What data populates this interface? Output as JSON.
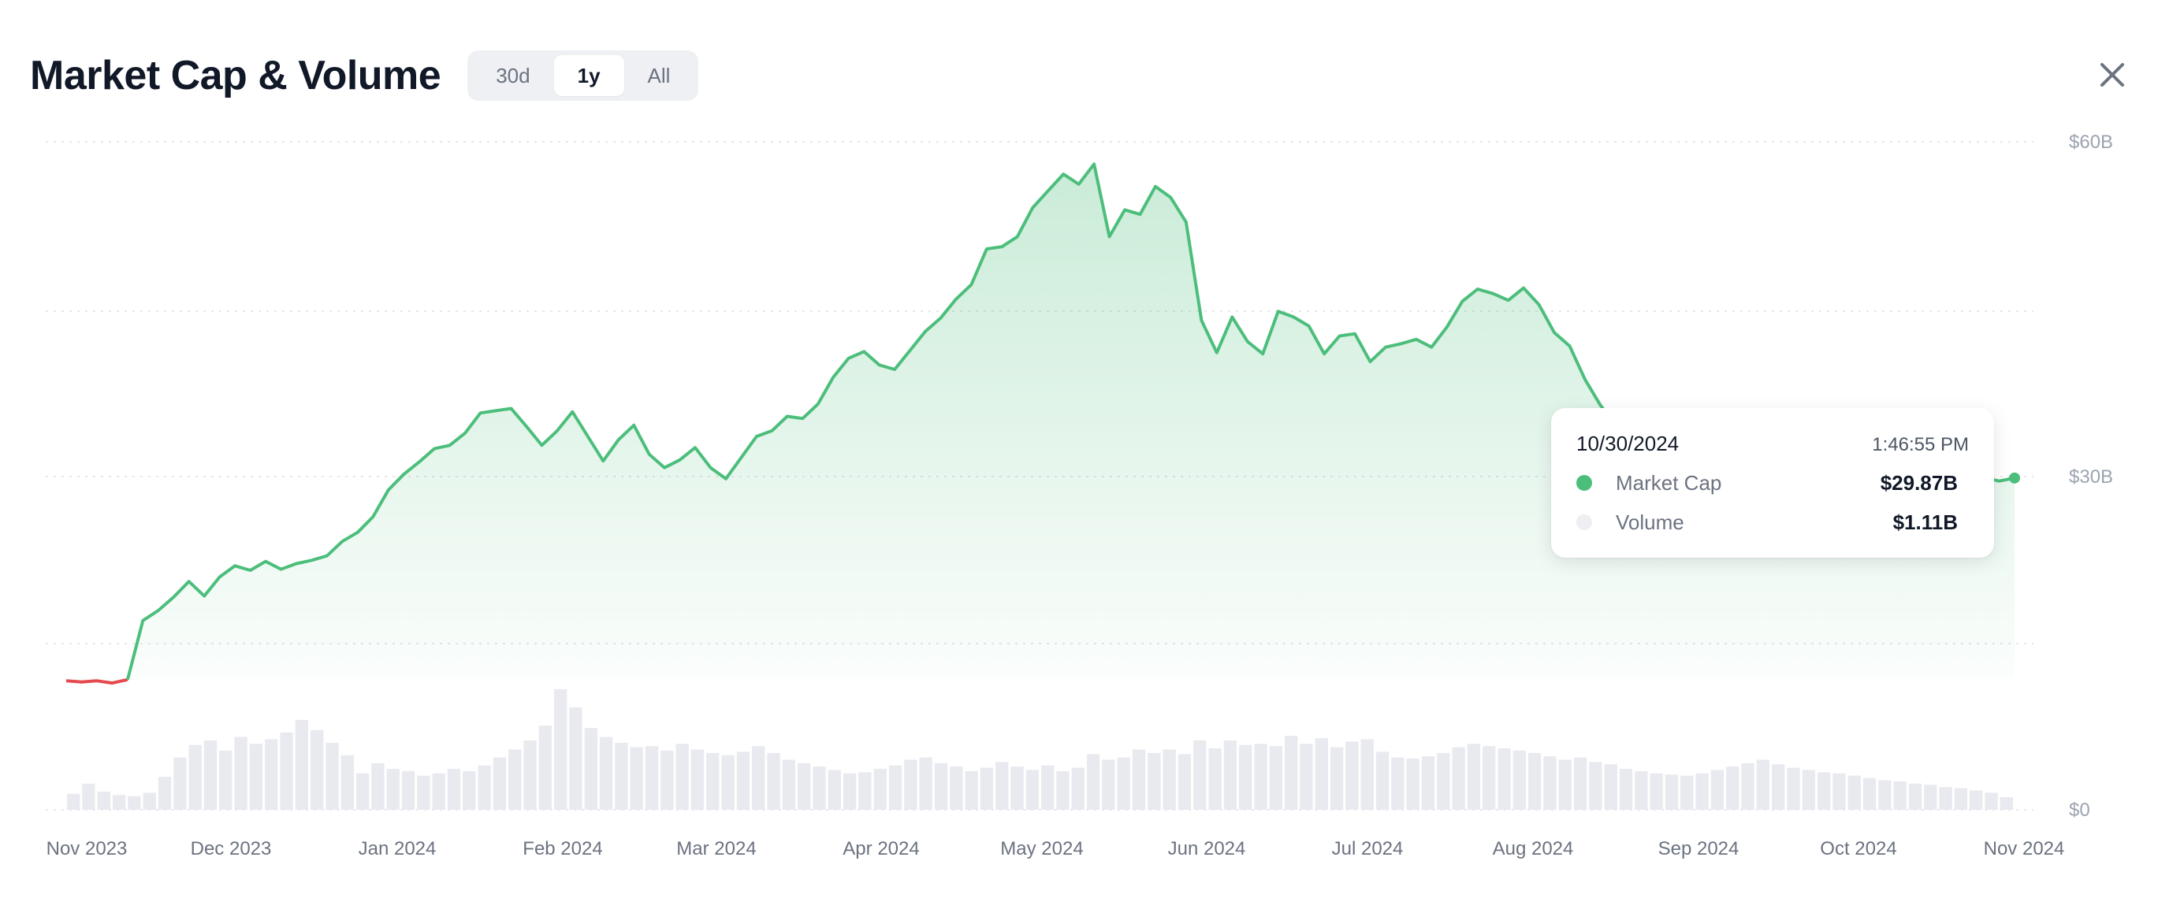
{
  "header": {
    "title": "Market Cap & Volume",
    "ranges": [
      "30d",
      "1y",
      "All"
    ],
    "active_range": "1y"
  },
  "icons": {
    "close": "close-icon"
  },
  "colors": {
    "up": "#4cbe7b",
    "down": "#e5484d",
    "volume": "#e9eaef",
    "grid": "#e5e7eb"
  },
  "tooltip": {
    "date": "10/30/2024",
    "time": "1:46:55 PM",
    "market_cap_label": "Market Cap",
    "market_cap_value": "$29.87B",
    "volume_label": "Volume",
    "volume_value": "$1.11B"
  },
  "chart_data": {
    "type": "area",
    "title": "Market Cap & Volume",
    "y_axis": {
      "ticks": [
        "$60B",
        "$30B",
        "$0"
      ],
      "unit": "USD billions",
      "range": [
        0,
        60
      ]
    },
    "x_axis": {
      "ticks": [
        "Nov 2023",
        "Dec 2023",
        "Jan 2024",
        "Feb 2024",
        "Mar 2024",
        "Apr 2024",
        "May 2024",
        "Jun 2024",
        "Jul 2024",
        "Aug 2024",
        "Sep 2024",
        "Oct 2024",
        "Nov 2024"
      ]
    },
    "grid": true,
    "series": [
      {
        "name": "Market Cap",
        "values": [
          11.7,
          11.6,
          11.7,
          11.5,
          11.8,
          17.1,
          18.0,
          19.2,
          20.6,
          19.3,
          21.0,
          22.0,
          21.6,
          22.4,
          21.7,
          22.2,
          22.5,
          22.9,
          24.2,
          25.0,
          26.4,
          28.8,
          30.2,
          31.3,
          32.5,
          32.8,
          33.9,
          35.7,
          35.9,
          36.1,
          34.5,
          32.8,
          34.1,
          35.8,
          33.6,
          31.4,
          33.3,
          34.6,
          32.0,
          30.8,
          31.5,
          32.6,
          30.8,
          29.8,
          31.7,
          33.6,
          34.1,
          35.4,
          35.2,
          36.5,
          38.9,
          40.6,
          41.2,
          40.0,
          39.6,
          41.3,
          43.0,
          44.2,
          45.9,
          47.2,
          50.4,
          50.6,
          51.5,
          54.1,
          55.6,
          57.1,
          56.2,
          58.0,
          51.5,
          53.9,
          53.5,
          56.0,
          55.0,
          52.8,
          44.0,
          41.1,
          44.3,
          42.1,
          41.0,
          44.8,
          44.3,
          43.5,
          41.0,
          42.6,
          42.8,
          40.3,
          41.6,
          41.9,
          42.3,
          41.6,
          43.4,
          45.7,
          46.8,
          46.4,
          45.8,
          46.9,
          45.4,
          42.9,
          41.7,
          38.7,
          36.4,
          34.6,
          35.3,
          34.9,
          35.8,
          35.5,
          32.6,
          31.7,
          32.9,
          32.3,
          33.9,
          34.9,
          35.2,
          33.2,
          32.2,
          31.6,
          31.5,
          30.7,
          30.1,
          31.2,
          32.3,
          31.5,
          31.1,
          30.6,
          30.2,
          29.9,
          29.6,
          29.87
        ]
      }
    ],
    "volume": [
      1.4,
      2.3,
      1.6,
      1.3,
      1.2,
      1.5,
      2.9,
      4.6,
      5.7,
      6.1,
      5.2,
      6.4,
      5.8,
      6.2,
      6.8,
      7.9,
      7.0,
      5.9,
      4.8,
      3.2,
      4.1,
      3.6,
      3.4,
      3.0,
      3.2,
      3.6,
      3.4,
      3.9,
      4.6,
      5.3,
      6.1,
      7.4,
      10.6,
      9.0,
      7.2,
      6.4,
      5.9,
      5.5,
      5.6,
      5.2,
      5.8,
      5.3,
      5.0,
      4.8,
      5.1,
      5.6,
      5.0,
      4.4,
      4.1,
      3.8,
      3.5,
      3.2,
      3.3,
      3.6,
      3.9,
      4.4,
      4.6,
      4.1,
      3.8,
      3.4,
      3.7,
      4.2,
      3.8,
      3.5,
      3.9,
      3.4,
      3.7,
      4.9,
      4.4,
      4.6,
      5.3,
      5.0,
      5.3,
      4.9,
      6.1,
      5.4,
      6.1,
      5.7,
      5.8,
      5.6,
      6.5,
      5.8,
      6.3,
      5.5,
      6.0,
      6.2,
      5.1,
      4.6,
      4.5,
      4.7,
      5.0,
      5.5,
      5.8,
      5.6,
      5.4,
      5.2,
      5.0,
      4.7,
      4.4,
      4.6,
      4.2,
      4.0,
      3.6,
      3.4,
      3.2,
      3.1,
      3.0,
      3.2,
      3.5,
      3.8,
      4.1,
      4.4,
      4.0,
      3.7,
      3.5,
      3.3,
      3.2,
      3.0,
      2.8,
      2.6,
      2.5,
      2.3,
      2.2,
      2.0,
      1.9,
      1.7,
      1.5,
      1.11
    ]
  }
}
